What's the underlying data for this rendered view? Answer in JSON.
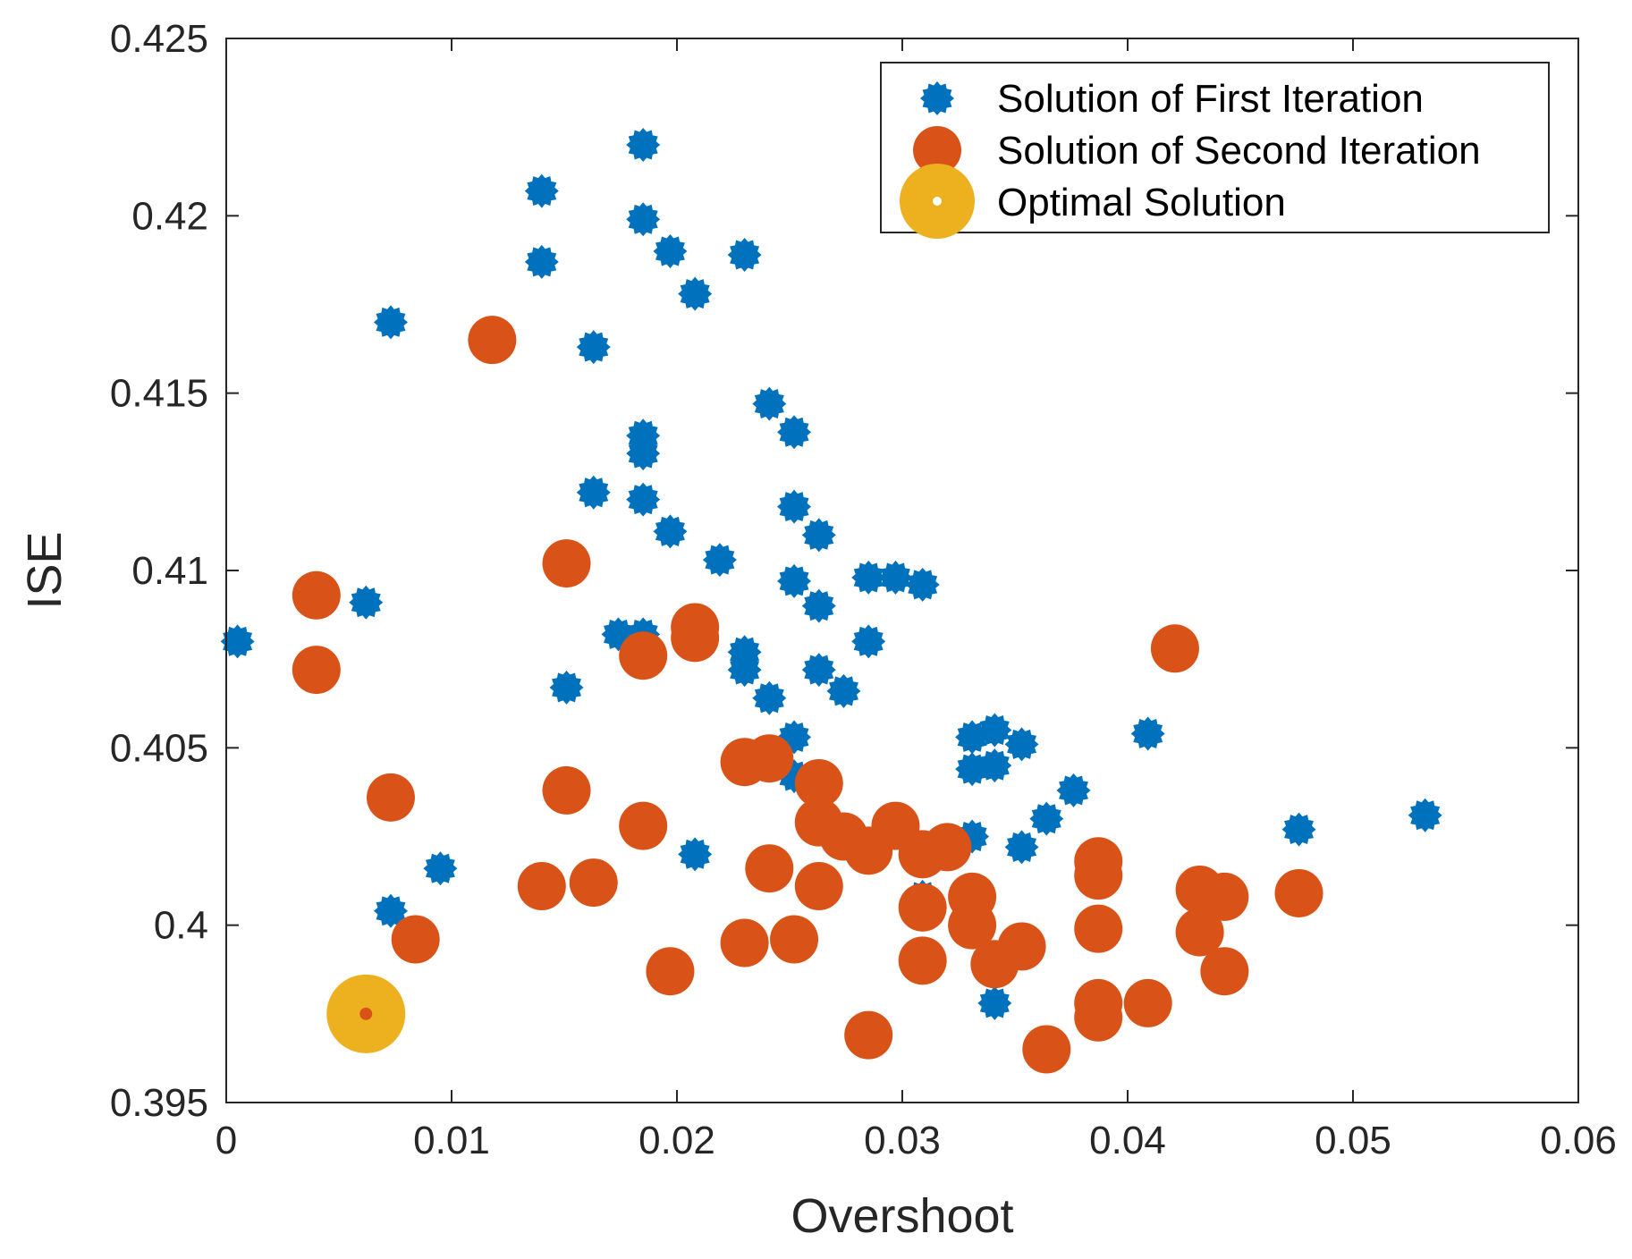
{
  "chart_data": {
    "type": "scatter",
    "title": "",
    "xlabel": "Overshoot",
    "ylabel": "ISE",
    "xlim": [
      0,
      0.06
    ],
    "ylim": [
      0.395,
      0.425
    ],
    "xticks": [
      0,
      0.01,
      0.02,
      0.03,
      0.04,
      0.05,
      0.06
    ],
    "xtick_labels": [
      "0",
      "0.01",
      "0.02",
      "0.03",
      "0.04",
      "0.05",
      "0.06"
    ],
    "yticks": [
      0.395,
      0.4,
      0.405,
      0.41,
      0.415,
      0.42,
      0.425
    ],
    "ytick_labels": [
      "0.395",
      "0.4",
      "0.405",
      "0.41",
      "0.415",
      "0.42",
      "0.425"
    ],
    "grid": false,
    "legend_location": "top-right",
    "series": [
      {
        "name": "Solution of First Iteration",
        "color": "#0072BD",
        "marker": "star-burst",
        "points": [
          [
            0.0185,
            0.422
          ],
          [
            0.014,
            0.4207
          ],
          [
            0.0185,
            0.4199
          ],
          [
            0.0197,
            0.419
          ],
          [
            0.023,
            0.4189
          ],
          [
            0.014,
            0.4187
          ],
          [
            0.0208,
            0.4178
          ],
          [
            0.0073,
            0.417
          ],
          [
            0.0163,
            0.4163
          ],
          [
            0.0241,
            0.4147
          ],
          [
            0.0252,
            0.4139
          ],
          [
            0.0185,
            0.4138
          ],
          [
            0.0185,
            0.4133
          ],
          [
            0.0163,
            0.4122
          ],
          [
            0.0185,
            0.412
          ],
          [
            0.0252,
            0.4118
          ],
          [
            0.0197,
            0.4111
          ],
          [
            0.0263,
            0.411
          ],
          [
            0.0219,
            0.4103
          ],
          [
            0.0252,
            0.4097
          ],
          [
            0.0285,
            0.4098
          ],
          [
            0.0297,
            0.4098
          ],
          [
            0.0309,
            0.4096
          ],
          [
            0.0062,
            0.4091
          ],
          [
            0.0263,
            0.409
          ],
          [
            0.0005,
            0.408
          ],
          [
            0.0174,
            0.4082
          ],
          [
            0.0185,
            0.4082
          ],
          [
            0.0285,
            0.408
          ],
          [
            0.023,
            0.4077
          ],
          [
            0.023,
            0.4072
          ],
          [
            0.0263,
            0.4072
          ],
          [
            0.0151,
            0.4067
          ],
          [
            0.0274,
            0.4066
          ],
          [
            0.0241,
            0.4064
          ],
          [
            0.0341,
            0.4055
          ],
          [
            0.0252,
            0.4053
          ],
          [
            0.0331,
            0.4053
          ],
          [
            0.0353,
            0.4051
          ],
          [
            0.0409,
            0.4054
          ],
          [
            0.0252,
            0.4042
          ],
          [
            0.0331,
            0.4044
          ],
          [
            0.0341,
            0.4045
          ],
          [
            0.0376,
            0.4038
          ],
          [
            0.0364,
            0.403
          ],
          [
            0.0532,
            0.4031
          ],
          [
            0.0476,
            0.4027
          ],
          [
            0.0331,
            0.4025
          ],
          [
            0.0353,
            0.4022
          ],
          [
            0.0208,
            0.402
          ],
          [
            0.0095,
            0.4016
          ],
          [
            0.0309,
            0.4008
          ],
          [
            0.0073,
            0.4004
          ],
          [
            0.0341,
            0.3978
          ]
        ]
      },
      {
        "name": "Solution of Second Iteration",
        "color": "#D95319",
        "marker": "circle",
        "points": [
          [
            0.0118,
            0.4165
          ],
          [
            0.0151,
            0.4102
          ],
          [
            0.004,
            0.4093
          ],
          [
            0.0208,
            0.4084
          ],
          [
            0.0208,
            0.4081
          ],
          [
            0.0421,
            0.4078
          ],
          [
            0.0185,
            0.4076
          ],
          [
            0.004,
            0.4072
          ],
          [
            0.023,
            0.4046
          ],
          [
            0.0241,
            0.4047
          ],
          [
            0.0263,
            0.404
          ],
          [
            0.0151,
            0.4038
          ],
          [
            0.0073,
            0.4036
          ],
          [
            0.0263,
            0.4029
          ],
          [
            0.0185,
            0.4028
          ],
          [
            0.0297,
            0.4028
          ],
          [
            0.0274,
            0.4025
          ],
          [
            0.0285,
            0.4021
          ],
          [
            0.0309,
            0.402
          ],
          [
            0.032,
            0.4022
          ],
          [
            0.0387,
            0.4018
          ],
          [
            0.0241,
            0.4016
          ],
          [
            0.0387,
            0.4014
          ],
          [
            0.014,
            0.4011
          ],
          [
            0.0163,
            0.4012
          ],
          [
            0.0263,
            0.4011
          ],
          [
            0.0331,
            0.4008
          ],
          [
            0.0432,
            0.401
          ],
          [
            0.0443,
            0.4008
          ],
          [
            0.0476,
            0.4009
          ],
          [
            0.0309,
            0.4005
          ],
          [
            0.0331,
            0.4
          ],
          [
            0.0387,
            0.3999
          ],
          [
            0.0432,
            0.3998
          ],
          [
            0.0084,
            0.3996
          ],
          [
            0.023,
            0.3995
          ],
          [
            0.0252,
            0.3996
          ],
          [
            0.0353,
            0.3994
          ],
          [
            0.0309,
            0.399
          ],
          [
            0.0341,
            0.3989
          ],
          [
            0.0197,
            0.3987
          ],
          [
            0.0443,
            0.3987
          ],
          [
            0.0387,
            0.3978
          ],
          [
            0.0409,
            0.3978
          ],
          [
            0.0387,
            0.3974
          ],
          [
            0.0285,
            0.3969
          ],
          [
            0.0364,
            0.3965
          ]
        ]
      },
      {
        "name": "Optimal Solution",
        "color": "#EDB120",
        "marker": "big-circle-with-dot",
        "points": [
          [
            0.0062,
            0.3975
          ]
        ]
      }
    ]
  }
}
